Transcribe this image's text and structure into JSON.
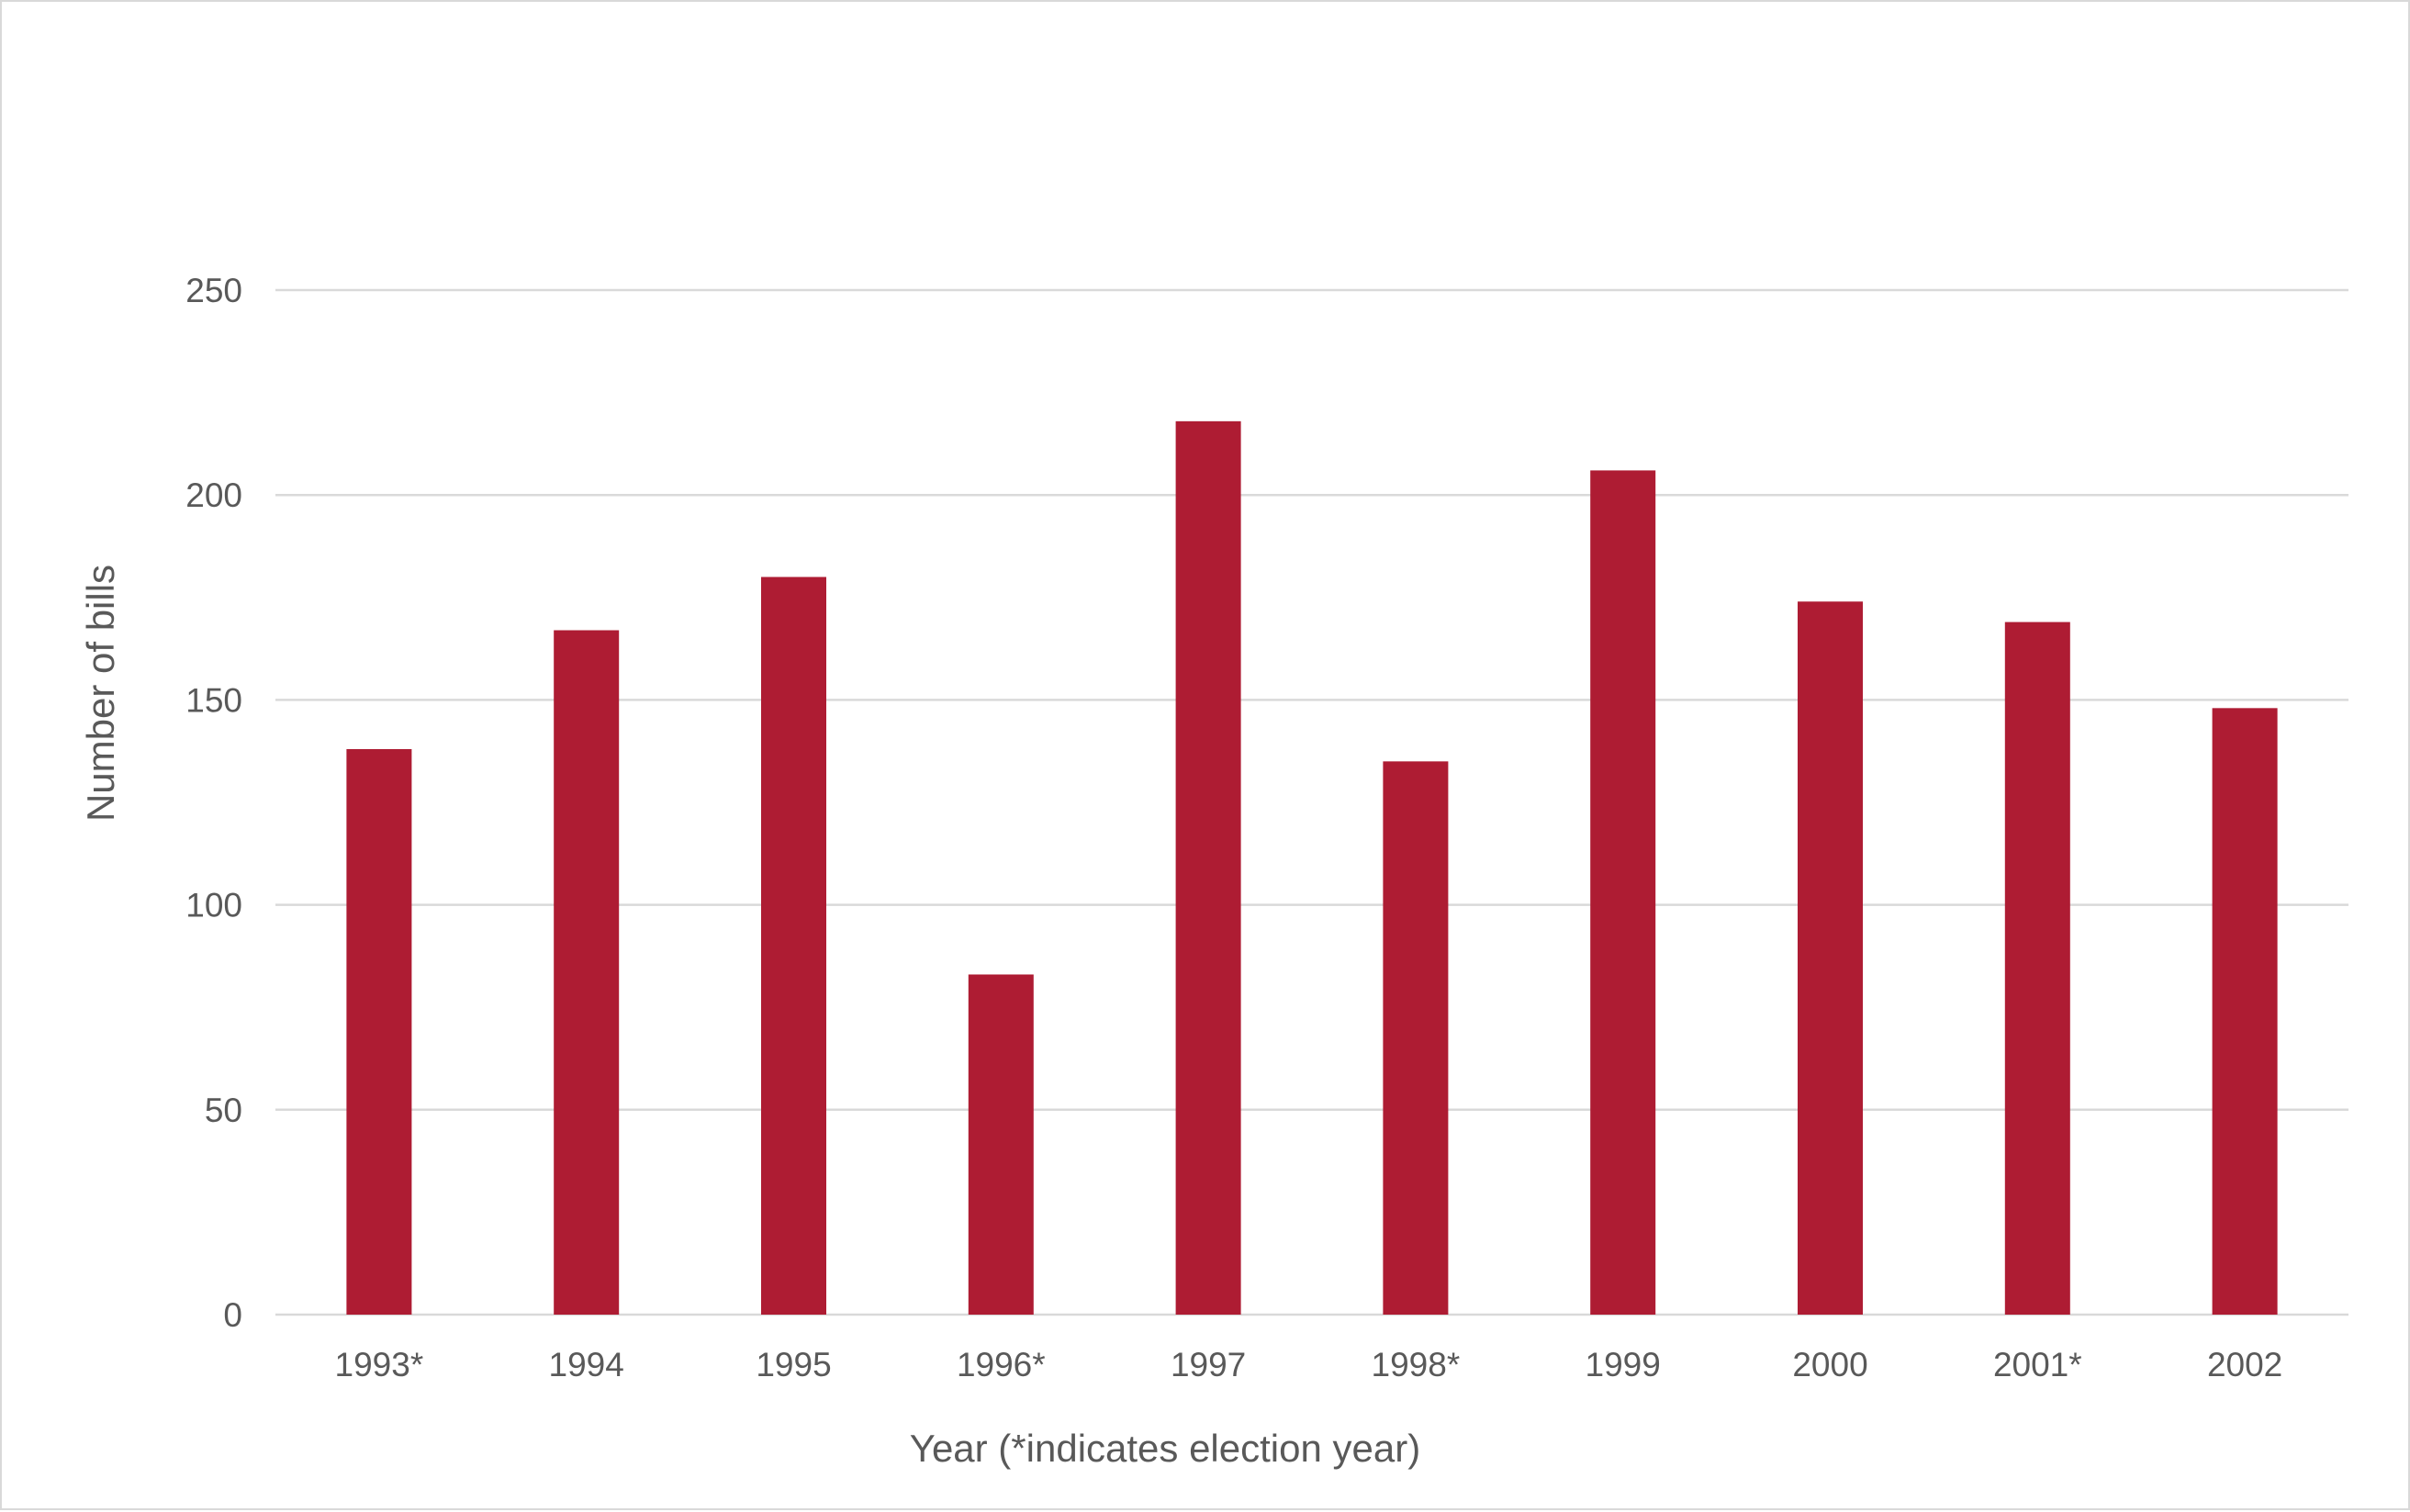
{
  "chart_data": {
    "type": "bar",
    "title": "",
    "xlabel": "Year (*indicates election year)",
    "ylabel": "Number of bills",
    "categories": [
      "1993*",
      "1994",
      "1995",
      "1996*",
      "1997",
      "1998*",
      "1999",
      "2000",
      "2001*",
      "2002"
    ],
    "series": [
      {
        "values": [
          138,
          167,
          180,
          83,
          218,
          135,
          206,
          174,
          169,
          148
        ],
        "color": "#ae1c33"
      }
    ],
    "ylim": [
      0,
      250
    ],
    "yticks": [
      0,
      50,
      100,
      150,
      200,
      250
    ],
    "grid": true,
    "legend": "none"
  }
}
